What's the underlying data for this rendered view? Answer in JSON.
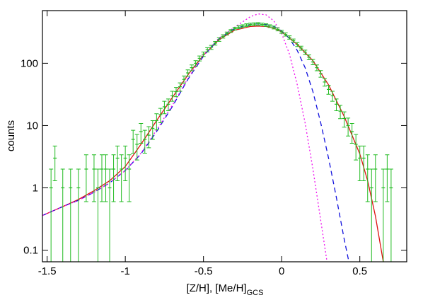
{
  "chart_data": {
    "type": "line",
    "log_y": true,
    "x_label": "[Z/H], [Me/H]",
    "x_label_sub": "GCS",
    "y_label": "counts",
    "xlim": [
      -1.53,
      0.8
    ],
    "ylim": [
      0.065,
      700
    ],
    "xticks": [
      -1.5,
      -1,
      -0.5,
      0,
      0.5
    ],
    "yticks": [
      0.1,
      1,
      10,
      100
    ],
    "series": [
      {
        "style": "errorbar",
        "color": "#22bb22",
        "x": [
          -1.475,
          -1.45,
          -1.4,
          -1.35,
          -1.3,
          -1.25,
          -1.2,
          -1.175,
          -1.15,
          -1.125,
          -1.1,
          -1.075,
          -1.05,
          -1.025,
          -1.0,
          -0.975,
          -0.95,
          -0.925,
          -0.9,
          -0.875,
          -0.85,
          -0.825,
          -0.8,
          -0.775,
          -0.75,
          -0.725,
          -0.7,
          -0.675,
          -0.65,
          -0.625,
          -0.6,
          -0.575,
          -0.55,
          -0.525,
          -0.5,
          -0.475,
          -0.45,
          -0.425,
          -0.4,
          -0.375,
          -0.35,
          -0.325,
          -0.3,
          -0.275,
          -0.25,
          -0.225,
          -0.2,
          -0.175,
          -0.15,
          -0.125,
          -0.1,
          -0.075,
          -0.05,
          -0.025,
          0.0,
          0.025,
          0.05,
          0.075,
          0.1,
          0.125,
          0.15,
          0.175,
          0.2,
          0.225,
          0.25,
          0.275,
          0.3,
          0.325,
          0.35,
          0.375,
          0.4,
          0.425,
          0.45,
          0.475,
          0.5,
          0.525,
          0.55,
          0.575,
          0.6,
          0.65,
          0.675,
          0.7
        ],
        "values": [
          1,
          3,
          1,
          1,
          1,
          2,
          2,
          1,
          2,
          2,
          1,
          2,
          3,
          2,
          3,
          2,
          6,
          5,
          8,
          6,
          7,
          9,
          12,
          15,
          20,
          22,
          30,
          35,
          42,
          55,
          70,
          85,
          100,
          120,
          140,
          165,
          180,
          210,
          240,
          270,
          300,
          330,
          360,
          380,
          395,
          410,
          420,
          425,
          430,
          420,
          410,
          395,
          375,
          350,
          320,
          290,
          260,
          230,
          200,
          175,
          150,
          125,
          105,
          85,
          68,
          50,
          38,
          30,
          22,
          17,
          13,
          10,
          8,
          5,
          3,
          3,
          2,
          1,
          2,
          1,
          2,
          1
        ],
        "errors": [
          1,
          1.7,
          1,
          1,
          1,
          1.4,
          1.4,
          1,
          1.4,
          1.4,
          1,
          1.4,
          1.7,
          1.4,
          1.7,
          1.4,
          2.4,
          2.2,
          2.8,
          2.4,
          2.6,
          3,
          3.5,
          3.9,
          4.5,
          4.7,
          5.5,
          5.9,
          6.5,
          7.4,
          8.4,
          9.2,
          10,
          11,
          11.8,
          12.8,
          13.4,
          14.5,
          15.5,
          16.4,
          17.3,
          18.2,
          19,
          19.5,
          19.9,
          20.2,
          20.5,
          20.6,
          20.7,
          20.5,
          20.2,
          19.9,
          19.4,
          18.7,
          17.9,
          17,
          16.1,
          15.2,
          14.1,
          13.2,
          12.2,
          11.2,
          10.2,
          9.2,
          8.2,
          7.1,
          6.2,
          5.5,
          4.7,
          4.1,
          3.6,
          3.2,
          2.8,
          2.2,
          1.7,
          1.7,
          1.4,
          1,
          1.4,
          1,
          1.4,
          1
        ]
      },
      {
        "style": "solid",
        "color": "#dd1111",
        "x": [
          -1.53,
          -1.4,
          -1.3,
          -1.2,
          -1.1,
          -1.0,
          -0.9,
          -0.8,
          -0.7,
          -0.6,
          -0.5,
          -0.4,
          -0.3,
          -0.2,
          -0.15,
          -0.1,
          -0.05,
          0,
          0.1,
          0.2,
          0.3,
          0.4,
          0.5,
          0.55,
          0.6,
          0.65
        ],
        "values": [
          0.36,
          0.5,
          0.65,
          0.9,
          1.3,
          2.2,
          5,
          12,
          28,
          65,
          135,
          240,
          340,
          390,
          395,
          390,
          365,
          320,
          200,
          110,
          45,
          14,
          3.5,
          1.3,
          0.35,
          0.065
        ]
      },
      {
        "style": "dashed",
        "color": "#1111dd",
        "x": [
          -1.53,
          -1.4,
          -1.3,
          -1.2,
          -1.1,
          -1.0,
          -0.9,
          -0.8,
          -0.7,
          -0.6,
          -0.5,
          -0.4,
          -0.3,
          -0.2,
          -0.15,
          -0.1,
          -0.05,
          0,
          0.05,
          0.1,
          0.15,
          0.2,
          0.25,
          0.3,
          0.35,
          0.4,
          0.43
        ],
        "values": [
          0.36,
          0.5,
          0.63,
          0.85,
          1.2,
          1.9,
          3.5,
          8,
          20,
          55,
          130,
          250,
          360,
          420,
          430,
          420,
          390,
          330,
          250,
          160,
          85,
          35,
          11,
          3,
          0.7,
          0.15,
          0.065
        ]
      },
      {
        "style": "dotted",
        "color": "#ee11ee",
        "x": [
          -1.53,
          -1.4,
          -1.3,
          -1.2,
          -1.1,
          -1.0,
          -0.9,
          -0.8,
          -0.7,
          -0.6,
          -0.5,
          -0.4,
          -0.3,
          -0.2,
          -0.15,
          -0.1,
          -0.05,
          0,
          0.05,
          0.1,
          0.15,
          0.2,
          0.25,
          0.29
        ],
        "values": [
          0.36,
          0.5,
          0.63,
          0.85,
          1.2,
          1.9,
          3.6,
          8.5,
          21,
          57,
          135,
          255,
          380,
          560,
          620,
          600,
          480,
          300,
          140,
          45,
          11,
          2,
          0.3,
          0.065
        ]
      }
    ]
  }
}
